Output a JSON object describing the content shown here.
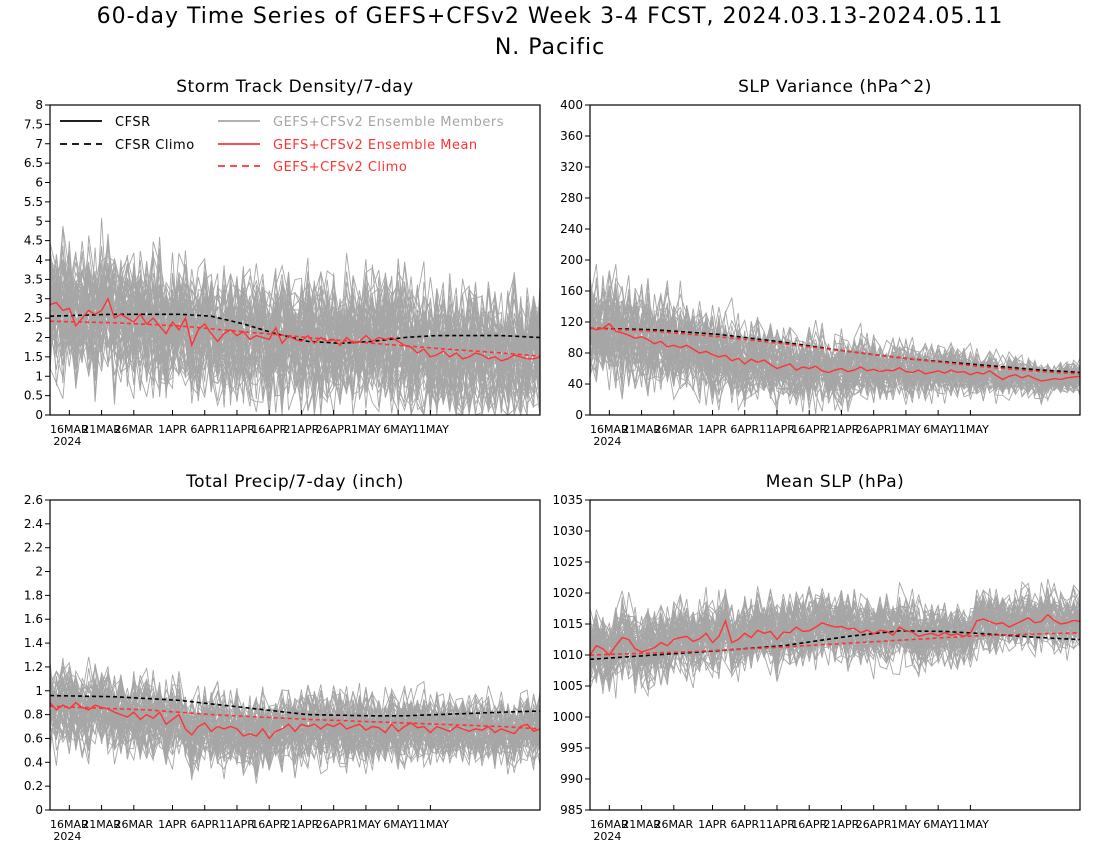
{
  "title_line1": "60-day Time Series of GEFS+CFSv2 Week 3-4 FCST, 2024.03.13-2024.05.11",
  "title_line2": "N. Pacific",
  "colors": {
    "cfsr": "#000000",
    "members": "#a6a6a6",
    "ensemble_mean": "#ff3333",
    "gefs_climo": "#ff3333"
  },
  "legend": [
    {
      "label": "CFSR",
      "style": "solid",
      "color": "#000000"
    },
    {
      "label": "CFSR Climo",
      "style": "dashed",
      "color": "#000000"
    },
    {
      "label": "GEFS+CFSv2 Ensemble Members",
      "style": "solid",
      "color": "#a6a6a6"
    },
    {
      "label": "GEFS+CFSv2 Ensemble Mean",
      "style": "solid",
      "color": "#ff3333"
    },
    {
      "label": "GEFS+CFSv2 Climo",
      "style": "dashed",
      "color": "#ff3333"
    }
  ],
  "chart_data": [
    {
      "type": "line",
      "title": "Storm Track Density/7-day",
      "x_ticks": [
        "16MAR",
        "21MAR",
        "26MAR",
        "1APR",
        "6APR",
        "11APR",
        "16APR",
        "21APR",
        "26APR",
        "1MAY",
        "6MAY",
        "11MAY"
      ],
      "x_year": "2024",
      "ylim": [
        0,
        8
      ],
      "yticks": [
        "0",
        "0.5",
        "1",
        "1.5",
        "2",
        "2.5",
        "3",
        "3.5",
        "4",
        "4.5",
        "5",
        "5.5",
        "6",
        "6.5",
        "7",
        "7.5",
        "8"
      ],
      "legend_position": "top",
      "series": [
        {
          "name": "CFSR Climo",
          "style": "dashed",
          "color": "#000000",
          "knots": [
            [
              0,
              2.55
            ],
            [
              10,
              2.6
            ],
            [
              20,
              2.6
            ],
            [
              25,
              2.55
            ],
            [
              30,
              2.35
            ],
            [
              35,
              2.1
            ],
            [
              40,
              1.9
            ],
            [
              45,
              1.85
            ],
            [
              50,
              1.9
            ],
            [
              55,
              2.0
            ],
            [
              60,
              2.05
            ],
            [
              70,
              2.05
            ],
            [
              76,
              2.0
            ]
          ]
        },
        {
          "name": "GEFS+CFSv2 Climo",
          "style": "dashed",
          "color": "#ff3333",
          "knots": [
            [
              0,
              2.42
            ],
            [
              10,
              2.38
            ],
            [
              20,
              2.3
            ],
            [
              30,
              2.15
            ],
            [
              40,
              2.0
            ],
            [
              50,
              1.85
            ],
            [
              60,
              1.72
            ],
            [
              70,
              1.6
            ],
            [
              76,
              1.52
            ]
          ]
        },
        {
          "name": "GEFS+CFSv2 Ensemble Mean",
          "style": "solid",
          "color": "#ff3333",
          "values": [
            2.85,
            2.9,
            2.7,
            2.75,
            2.3,
            2.5,
            2.7,
            2.6,
            2.7,
            3.0,
            2.5,
            2.6,
            2.5,
            2.4,
            2.6,
            2.35,
            2.5,
            2.3,
            2.1,
            2.4,
            2.2,
            2.5,
            1.8,
            2.2,
            2.35,
            2.1,
            1.9,
            2.1,
            2.2,
            2.05,
            2.15,
            1.95,
            2.05,
            2.0,
            1.95,
            2.25,
            1.85,
            2.05,
            1.95,
            1.9,
            2.05,
            1.85,
            2.0,
            1.9,
            1.95,
            1.8,
            2.0,
            1.85,
            1.9,
            2.05,
            1.9,
            2.0,
            1.95,
            2.0,
            1.9,
            1.8,
            1.75,
            1.6,
            1.7,
            1.5,
            1.55,
            1.65,
            1.5,
            1.6,
            1.45,
            1.5,
            1.6,
            1.55,
            1.45,
            1.5,
            1.4,
            1.45,
            1.55,
            1.5,
            1.45,
            1.45,
            1.5
          ]
        },
        {
          "name": "GEFS+CFSv2 Ensemble Members",
          "style": "solid",
          "color": "#a6a6a6",
          "members": 60,
          "mean_path": "GEFS+CFSv2 Ensemble Mean",
          "spread_start": 1.0,
          "spread_end": 1.0,
          "clip": [
            0,
            8
          ]
        }
      ]
    },
    {
      "type": "line",
      "title": "SLP Variance (hPa^2)",
      "x_ticks": [
        "16MAR",
        "21MAR",
        "26MAR",
        "1APR",
        "6APR",
        "11APR",
        "16APR",
        "21APR",
        "26APR",
        "1MAY",
        "6MAY",
        "11MAY"
      ],
      "x_year": "2024",
      "ylim": [
        0,
        400
      ],
      "yticks": [
        "0",
        "40",
        "80",
        "120",
        "160",
        "200",
        "240",
        "280",
        "320",
        "360",
        "400"
      ],
      "series": [
        {
          "name": "CFSR Climo",
          "style": "dashed",
          "color": "#000000",
          "knots": [
            [
              0,
              112
            ],
            [
              10,
              110
            ],
            [
              20,
              104
            ],
            [
              30,
              94
            ],
            [
              40,
              82
            ],
            [
              50,
              72
            ],
            [
              60,
              65
            ],
            [
              70,
              58
            ],
            [
              76,
              55
            ]
          ]
        },
        {
          "name": "GEFS+CFSv2 Climo",
          "style": "dashed",
          "color": "#ff3333",
          "knots": [
            [
              0,
              112
            ],
            [
              10,
              108
            ],
            [
              20,
              101
            ],
            [
              30,
              92
            ],
            [
              40,
              82
            ],
            [
              50,
              72
            ],
            [
              60,
              63
            ],
            [
              70,
              56
            ],
            [
              76,
              53
            ]
          ]
        },
        {
          "name": "GEFS+CFSv2 Ensemble Mean",
          "style": "solid",
          "color": "#ff3333",
          "values": [
            113,
            110,
            112,
            118,
            108,
            106,
            103,
            99,
            101,
            97,
            92,
            95,
            88,
            90,
            87,
            90,
            85,
            80,
            82,
            78,
            75,
            77,
            70,
            73,
            66,
            72,
            68,
            71,
            65,
            60,
            63,
            66,
            58,
            62,
            60,
            63,
            57,
            55,
            58,
            60,
            56,
            58,
            62,
            57,
            59,
            56,
            58,
            57,
            61,
            56,
            55,
            58,
            53,
            55,
            57,
            54,
            58,
            55,
            56,
            52,
            55,
            53,
            57,
            51,
            46,
            50,
            52,
            48,
            51,
            47,
            44,
            45,
            47,
            46,
            48,
            49,
            50
          ]
        },
        {
          "name": "GEFS+CFSv2 Ensemble Members",
          "style": "solid",
          "color": "#a6a6a6",
          "members": 60,
          "mean_path": "GEFS+CFSv2 Ensemble Mean",
          "spread_start": 40,
          "spread_end": 11,
          "clip": [
            0,
            400
          ]
        }
      ]
    },
    {
      "type": "line",
      "title": "Total Precip/7-day (inch)",
      "x_ticks": [
        "16MAR",
        "21MAR",
        "26MAR",
        "1APR",
        "6APR",
        "11APR",
        "16APR",
        "21APR",
        "26APR",
        "1MAY",
        "6MAY",
        "11MAY"
      ],
      "x_year": "2024",
      "ylim": [
        0,
        2.6
      ],
      "yticks": [
        "0",
        "0.2",
        "0.4",
        "0.6",
        "0.8",
        "1",
        "1.2",
        "1.4",
        "1.6",
        "1.8",
        "2",
        "2.2",
        "2.4",
        "2.6"
      ],
      "series": [
        {
          "name": "CFSR Climo",
          "style": "dashed",
          "color": "#000000",
          "knots": [
            [
              0,
              0.96
            ],
            [
              10,
              0.95
            ],
            [
              20,
              0.92
            ],
            [
              30,
              0.86
            ],
            [
              40,
              0.8
            ],
            [
              50,
              0.79
            ],
            [
              55,
              0.79
            ],
            [
              60,
              0.8
            ],
            [
              70,
              0.82
            ],
            [
              76,
              0.83
            ]
          ]
        },
        {
          "name": "GEFS+CFSv2 Climo",
          "style": "dashed",
          "color": "#ff3333",
          "knots": [
            [
              0,
              0.87
            ],
            [
              15,
              0.84
            ],
            [
              25,
              0.8
            ],
            [
              40,
              0.76
            ],
            [
              50,
              0.74
            ],
            [
              60,
              0.72
            ],
            [
              70,
              0.7
            ],
            [
              76,
              0.68
            ]
          ]
        },
        {
          "name": "GEFS+CFSv2 Ensemble Mean",
          "style": "solid",
          "color": "#ff3333",
          "values": [
            0.9,
            0.84,
            0.88,
            0.85,
            0.9,
            0.86,
            0.84,
            0.88,
            0.86,
            0.85,
            0.82,
            0.8,
            0.78,
            0.82,
            0.76,
            0.8,
            0.77,
            0.82,
            0.72,
            0.76,
            0.8,
            0.68,
            0.63,
            0.7,
            0.73,
            0.66,
            0.7,
            0.68,
            0.7,
            0.68,
            0.62,
            0.64,
            0.62,
            0.68,
            0.6,
            0.66,
            0.68,
            0.72,
            0.66,
            0.72,
            0.7,
            0.72,
            0.68,
            0.72,
            0.7,
            0.73,
            0.68,
            0.7,
            0.72,
            0.67,
            0.7,
            0.69,
            0.65,
            0.72,
            0.66,
            0.7,
            0.73,
            0.69,
            0.7,
            0.65,
            0.7,
            0.68,
            0.66,
            0.7,
            0.68,
            0.66,
            0.68,
            0.67,
            0.7,
            0.65,
            0.68,
            0.66,
            0.64,
            0.7,
            0.72,
            0.66,
            0.68
          ]
        },
        {
          "name": "GEFS+CFSv2 Ensemble Members",
          "style": "solid",
          "color": "#a6a6a6",
          "members": 60,
          "mean_path": "GEFS+CFSv2 Ensemble Mean",
          "spread_start": 0.2,
          "spread_end": 0.16,
          "clip": [
            0,
            2.6
          ]
        }
      ]
    },
    {
      "type": "line",
      "title": "Mean SLP (hPa)",
      "x_ticks": [
        "16MAR",
        "21MAR",
        "26MAR",
        "1APR",
        "6APR",
        "11APR",
        "16APR",
        "21APR",
        "26APR",
        "1MAY",
        "6MAY",
        "11MAY"
      ],
      "x_year": "2024",
      "ylim": [
        985,
        1035
      ],
      "yticks": [
        "985",
        "990",
        "995",
        "1000",
        "1005",
        "1010",
        "1015",
        "1020",
        "1025",
        "1030",
        "1035"
      ],
      "series": [
        {
          "name": "CFSR Climo",
          "style": "dashed",
          "color": "#000000",
          "knots": [
            [
              0,
              1009.3
            ],
            [
              10,
              1010.0
            ],
            [
              20,
              1010.7
            ],
            [
              30,
              1011.5
            ],
            [
              40,
              1013.0
            ],
            [
              48,
              1013.9
            ],
            [
              55,
              1013.8
            ],
            [
              60,
              1013.5
            ],
            [
              70,
              1012.8
            ],
            [
              76,
              1012.5
            ]
          ]
        },
        {
          "name": "GEFS+CFSv2 Climo",
          "style": "dashed",
          "color": "#ff3333",
          "knots": [
            [
              0,
              1010.0
            ],
            [
              15,
              1010.5
            ],
            [
              30,
              1011.3
            ],
            [
              45,
              1012.2
            ],
            [
              60,
              1013.1
            ],
            [
              76,
              1013.6
            ]
          ]
        },
        {
          "name": "GEFS+CFSv2 Ensemble Mean",
          "style": "solid",
          "color": "#ff3333",
          "values": [
            1010.0,
            1011.5,
            1011.0,
            1010.0,
            1011.5,
            1012.8,
            1012.5,
            1011.0,
            1010.5,
            1010.8,
            1011.2,
            1012.0,
            1011.5,
            1012.5,
            1012.8,
            1013.0,
            1012.2,
            1012.6,
            1013.5,
            1012.0,
            1013.0,
            1015.5,
            1012.0,
            1012.5,
            1013.5,
            1012.8,
            1014.0,
            1013.5,
            1013.8,
            1012.5,
            1013.7,
            1013.6,
            1014.5,
            1013.8,
            1013.9,
            1014.5,
            1015.2,
            1014.8,
            1014.5,
            1014.6,
            1014.2,
            1014.3,
            1013.6,
            1014.0,
            1013.4,
            1014.0,
            1013.8,
            1013.2,
            1014.5,
            1013.9,
            1013.7,
            1013.0,
            1013.3,
            1013.5,
            1013.1,
            1013.6,
            1013.2,
            1013.4,
            1013.0,
            1013.5,
            1015.5,
            1015.8,
            1015.4,
            1015.0,
            1015.2,
            1014.5,
            1015.0,
            1015.5,
            1016.0,
            1015.2,
            1015.4,
            1016.5,
            1015.6,
            1015.0,
            1015.2,
            1015.6,
            1015.4
          ]
        },
        {
          "name": "GEFS+CFSv2 Ensemble Members",
          "style": "solid",
          "color": "#a6a6a6",
          "members": 60,
          "mean_path": "GEFS+CFSv2 Ensemble Mean",
          "spread_start": 3.6,
          "spread_end": 2.8,
          "clip": [
            985,
            1035
          ]
        }
      ]
    }
  ]
}
